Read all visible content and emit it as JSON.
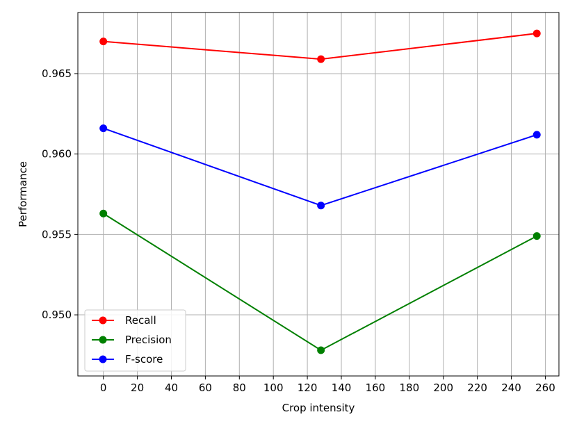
{
  "chart_data": {
    "type": "line",
    "title": "",
    "xlabel": "Crop intensity",
    "ylabel": "Performance",
    "x": [
      0,
      128,
      255
    ],
    "series": [
      {
        "name": "Recall",
        "color": "#ff0000",
        "values": [
          0.967,
          0.9659,
          0.9675
        ]
      },
      {
        "name": "Precision",
        "color": "#008000",
        "values": [
          0.9563,
          0.9478,
          0.9549
        ]
      },
      {
        "name": "F-score",
        "color": "#0000ff",
        "values": [
          0.9616,
          0.9568,
          0.9612
        ]
      }
    ],
    "xlim": [
      -15,
      268
    ],
    "ylim": [
      0.9462,
      0.9688
    ],
    "xticks": [
      0,
      20,
      40,
      60,
      80,
      100,
      120,
      140,
      160,
      180,
      200,
      220,
      240,
      260
    ],
    "xtick_labels": [
      "0",
      "20",
      "40",
      "60",
      "80",
      "100",
      "120",
      "140",
      "160",
      "180",
      "200",
      "220",
      "240",
      "260"
    ],
    "yticks": [
      0.95,
      0.955,
      0.96,
      0.965
    ],
    "ytick_labels": [
      "0.950",
      "0.955",
      "0.960",
      "0.965"
    ],
    "grid": true,
    "legend_position": "lower-left"
  }
}
